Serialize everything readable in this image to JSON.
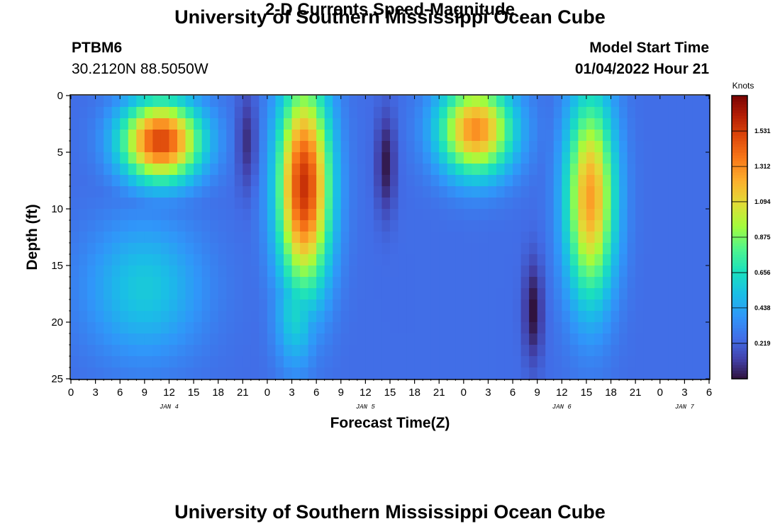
{
  "header": {
    "title": "University of Southern Mississippi Ocean Cube",
    "station": "PTBM6",
    "coords": "30.2120N  88.5050W",
    "subtitle": "2-D Currents Speed-Magnitude",
    "model_start_label": "Model Start Time",
    "model_start_value": "01/04/2022 Hour 21"
  },
  "footer": {
    "title": "University of Southern Mississippi Ocean Cube"
  },
  "chart_data": {
    "type": "heatmap",
    "title": "2-D Currents Speed-Magnitude",
    "xlabel": "Forecast Time(Z)",
    "ylabel": "Depth (ft)",
    "x_range_hours": [
      0,
      78
    ],
    "y_range_ft": [
      0,
      25
    ],
    "x_tick_labels": [
      "0",
      "3",
      "6",
      "9",
      "12",
      "15",
      "18",
      "21",
      "0",
      "3",
      "6",
      "9",
      "12",
      "15",
      "18",
      "21",
      "0",
      "3",
      "6",
      "9",
      "12",
      "15",
      "18",
      "21",
      "0",
      "3",
      "6"
    ],
    "y_tick_labels": [
      "0",
      "5",
      "10",
      "15",
      "20",
      "25"
    ],
    "y_ticks": [
      0,
      5,
      10,
      15,
      20,
      25
    ],
    "day_labels": [
      {
        "label": "JAN 4",
        "hour": 12
      },
      {
        "label": "JAN 5",
        "hour": 36
      },
      {
        "label": "JAN 6",
        "hour": 60
      },
      {
        "label": "JAN 7",
        "hour": 75
      }
    ],
    "colorbar": {
      "unit": "Knots",
      "range": [
        0,
        1.75
      ],
      "tick_labels": [
        "0.219",
        "0.438",
        "0.656",
        "0.875",
        "1.094",
        "1.312",
        "1.531"
      ],
      "tick_values": [
        0.219,
        0.438,
        0.656,
        0.875,
        1.094,
        1.312,
        1.531
      ]
    },
    "background_speed_knots": 0.25,
    "features": [
      {
        "name": "ebb-jan4",
        "t_center": 11,
        "t_width": 4.8,
        "d_center": 4,
        "d_width": 3.5,
        "peak": 1.4
      },
      {
        "name": "ebb-jan4-deep",
        "t_center": 9,
        "t_width": 7,
        "d_center": 17,
        "d_width": 6,
        "peak": 0.45
      },
      {
        "name": "ebb-jan5",
        "t_center": 4.5,
        "t_width": 3.2,
        "d_center": 8,
        "d_width": 9,
        "peak": 1.45,
        "day_offset": 24
      },
      {
        "name": "ebb-jan5-deep",
        "t_center": 3.5,
        "t_width": 2.5,
        "d_center": 19,
        "d_width": 5,
        "peak": 0.5,
        "day_offset": 24
      },
      {
        "name": "ebb-jan6",
        "t_center": 1.5,
        "t_width": 4.5,
        "d_center": 3,
        "d_width": 4,
        "peak": 1.2,
        "day_offset": 48
      },
      {
        "name": "flood-jan6",
        "t_center": 15.5,
        "t_width": 3,
        "d_center": 9,
        "d_width": 9,
        "peak": 1.15,
        "day_offset": 48
      }
    ],
    "minima": [
      {
        "name": "slack-jan4-21",
        "hour": 21.5,
        "depth": 4,
        "value": 0.08
      },
      {
        "name": "slack-jan5-14",
        "hour": 38.5,
        "depth": 6,
        "value": 0.02
      },
      {
        "name": "slack-jan6-08",
        "hour": 56.5,
        "depth": 19,
        "value": 0.0
      }
    ]
  }
}
